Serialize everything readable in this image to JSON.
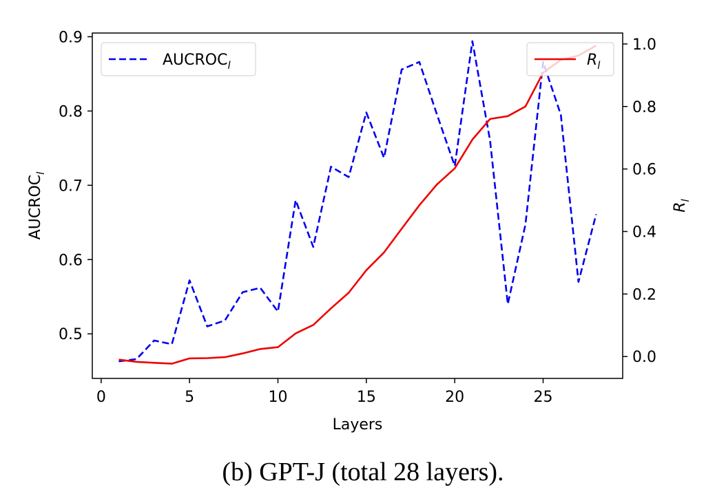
{
  "chart_data": {
    "type": "line",
    "caption": "(b) GPT-J (total 28 layers).",
    "xlabel": "Layers",
    "ylabel_left": "AUCROC",
    "ylabel_left_sub": "l",
    "ylabel_right": "R",
    "ylabel_right_sub": "l",
    "xlim": [
      -0.5,
      29.5
    ],
    "ylim_left": [
      0.44,
      0.905
    ],
    "ylim_right": [
      -0.07,
      1.035
    ],
    "xticks": [
      0,
      5,
      10,
      15,
      20,
      25
    ],
    "yticks_left": [
      0.5,
      0.6,
      0.7,
      0.8,
      0.9
    ],
    "yticks_right": [
      0.0,
      0.2,
      0.4,
      0.6,
      0.8,
      1.0
    ],
    "grid": false,
    "series": [
      {
        "name": "AUCROC",
        "name_sub": "l",
        "axis": "left",
        "style": "dashed",
        "color": "#0000ee",
        "legend_position": "upper left",
        "x": [
          1,
          2,
          3,
          4,
          5,
          6,
          7,
          8,
          9,
          10,
          11,
          12,
          13,
          14,
          15,
          16,
          17,
          18,
          19,
          20,
          21,
          22,
          23,
          24,
          25,
          26,
          27,
          28
        ],
        "values": [
          0.463,
          0.466,
          0.491,
          0.486,
          0.572,
          0.51,
          0.518,
          0.556,
          0.562,
          0.53,
          0.68,
          0.617,
          0.725,
          0.711,
          0.798,
          0.737,
          0.856,
          0.866,
          0.795,
          0.726,
          0.894,
          0.76,
          0.54,
          0.647,
          0.866,
          0.795,
          0.57,
          0.661
        ]
      },
      {
        "name": "R",
        "name_sub": "l",
        "axis": "right",
        "style": "solid",
        "color": "#ee0000",
        "legend_position": "upper right",
        "x": [
          1,
          2,
          3,
          4,
          5,
          6,
          7,
          8,
          9,
          10,
          11,
          12,
          13,
          14,
          15,
          16,
          17,
          18,
          19,
          20,
          21,
          22,
          23,
          24,
          25,
          26,
          27,
          28
        ],
        "values": [
          -0.01,
          -0.017,
          -0.02,
          -0.023,
          -0.006,
          -0.005,
          -0.002,
          0.01,
          0.024,
          0.03,
          0.074,
          0.101,
          0.154,
          0.204,
          0.276,
          0.333,
          0.409,
          0.484,
          0.551,
          0.602,
          0.694,
          0.76,
          0.769,
          0.8,
          0.908,
          0.949,
          0.963,
          0.995
        ]
      }
    ]
  }
}
